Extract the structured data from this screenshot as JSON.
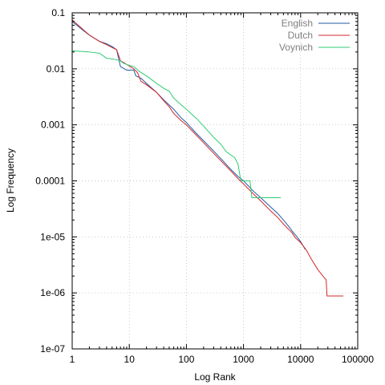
{
  "chart_data": {
    "type": "line",
    "title": "",
    "xlabel": "Log Rank",
    "ylabel": "Log Frequency",
    "x_scale": "log",
    "y_scale": "log",
    "xlim": [
      1,
      100000
    ],
    "ylim": [
      1e-07,
      0.1
    ],
    "grid": true,
    "legend_position": "top-right",
    "x_ticks": [
      {
        "value": 1,
        "label": "1"
      },
      {
        "value": 10,
        "label": "10"
      },
      {
        "value": 100,
        "label": "100"
      },
      {
        "value": 1000,
        "label": "1000"
      },
      {
        "value": 10000,
        "label": "10000"
      },
      {
        "value": 100000,
        "label": "100000"
      }
    ],
    "y_ticks": [
      {
        "value": 0.1,
        "label": "0.1"
      },
      {
        "value": 0.01,
        "label": "0.01"
      },
      {
        "value": 0.001,
        "label": "0.001"
      },
      {
        "value": 0.0001,
        "label": "0.0001"
      },
      {
        "value": 1e-05,
        "label": "1e-05"
      },
      {
        "value": 1e-06,
        "label": "1e-06"
      },
      {
        "value": 1e-07,
        "label": "1e-07"
      }
    ],
    "series": [
      {
        "name": "English",
        "color": "#1f5aa6",
        "points": [
          [
            1,
            0.07
          ],
          [
            1.5,
            0.05
          ],
          [
            2,
            0.04
          ],
          [
            3,
            0.031
          ],
          [
            4,
            0.028
          ],
          [
            5,
            0.025
          ],
          [
            6,
            0.022
          ],
          [
            7,
            0.011
          ],
          [
            9,
            0.0095
          ],
          [
            12,
            0.0095
          ],
          [
            13,
            0.0075
          ],
          [
            16,
            0.0068
          ],
          [
            20,
            0.0055
          ],
          [
            30,
            0.0038
          ],
          [
            40,
            0.0028
          ],
          [
            60,
            0.0019
          ],
          [
            80,
            0.00135
          ],
          [
            100,
            0.0011
          ],
          [
            150,
            0.0007
          ],
          [
            200,
            0.00052
          ],
          [
            300,
            0.00034
          ],
          [
            400,
            0.00025
          ],
          [
            600,
            0.00016
          ],
          [
            800,
            0.00012
          ],
          [
            1000,
            0.0001
          ],
          [
            1500,
            6.5e-05
          ],
          [
            2000,
            5e-05
          ],
          [
            3000,
            3.4e-05
          ],
          [
            4000,
            2.6e-05
          ],
          [
            5000,
            2e-05
          ],
          [
            6000,
            1.6e-05
          ],
          [
            7000,
            1.3e-05
          ],
          [
            8000,
            1.1e-05
          ],
          [
            9000,
            9.5e-06
          ],
          [
            10000,
            8.2e-06
          ],
          [
            11000,
            7e-06
          ],
          [
            12000,
            6e-06
          ]
        ]
      },
      {
        "name": "Dutch",
        "color": "#d62728",
        "points": [
          [
            1,
            0.075
          ],
          [
            1.5,
            0.052
          ],
          [
            2,
            0.04
          ],
          [
            3,
            0.031
          ],
          [
            4,
            0.027
          ],
          [
            5,
            0.024
          ],
          [
            6,
            0.022
          ],
          [
            7,
            0.014
          ],
          [
            9,
            0.012
          ],
          [
            12,
            0.01
          ],
          [
            14,
            0.0085
          ],
          [
            16,
            0.006
          ],
          [
            20,
            0.0052
          ],
          [
            30,
            0.0038
          ],
          [
            40,
            0.0027
          ],
          [
            50,
            0.0021
          ],
          [
            60,
            0.0016
          ],
          [
            80,
            0.0012
          ],
          [
            100,
            0.001
          ],
          [
            150,
            0.00065
          ],
          [
            200,
            0.00048
          ],
          [
            300,
            0.00031
          ],
          [
            400,
            0.00023
          ],
          [
            600,
            0.00015
          ],
          [
            800,
            0.00011
          ],
          [
            1000,
            8.8e-05
          ],
          [
            1500,
            5.8e-05
          ],
          [
            2000,
            4.4e-05
          ],
          [
            3000,
            2.9e-05
          ],
          [
            4000,
            2.2e-05
          ],
          [
            5000,
            1.7e-05
          ],
          [
            6000,
            1.4e-05
          ],
          [
            7000,
            1.2e-05
          ],
          [
            8000,
            9.8e-06
          ],
          [
            10000,
            7.9e-06
          ],
          [
            12000,
            6.2e-06
          ],
          [
            13000,
            5.5e-06
          ],
          [
            15000,
            4.2e-06
          ],
          [
            20000,
            2.6e-06
          ],
          [
            28000,
            1.7e-06
          ],
          [
            29000,
            8.8e-07
          ],
          [
            56000,
            8.8e-07
          ]
        ]
      },
      {
        "name": "Voynich",
        "color": "#2ecc71",
        "points": [
          [
            1,
            0.021
          ],
          [
            2,
            0.02
          ],
          [
            3,
            0.019
          ],
          [
            4,
            0.0155
          ],
          [
            5,
            0.015
          ],
          [
            6,
            0.0145
          ],
          [
            7,
            0.0138
          ],
          [
            8,
            0.0125
          ],
          [
            9,
            0.012
          ],
          [
            10,
            0.0115
          ],
          [
            12,
            0.011
          ],
          [
            15,
            0.009
          ],
          [
            20,
            0.0075
          ],
          [
            30,
            0.0055
          ],
          [
            40,
            0.0045
          ],
          [
            50,
            0.004
          ],
          [
            60,
            0.003
          ],
          [
            80,
            0.0023
          ],
          [
            100,
            0.0019
          ],
          [
            150,
            0.0013
          ],
          [
            200,
            0.00095
          ],
          [
            300,
            0.0006
          ],
          [
            400,
            0.00045
          ],
          [
            500,
            0.00033
          ],
          [
            700,
            0.00026
          ],
          [
            800,
            0.0002
          ],
          [
            900,
            0.0001
          ],
          [
            1000,
            0.0001
          ],
          [
            1300,
            0.0001
          ],
          [
            1400,
            5e-05
          ],
          [
            4500,
            5e-05
          ]
        ]
      }
    ]
  }
}
